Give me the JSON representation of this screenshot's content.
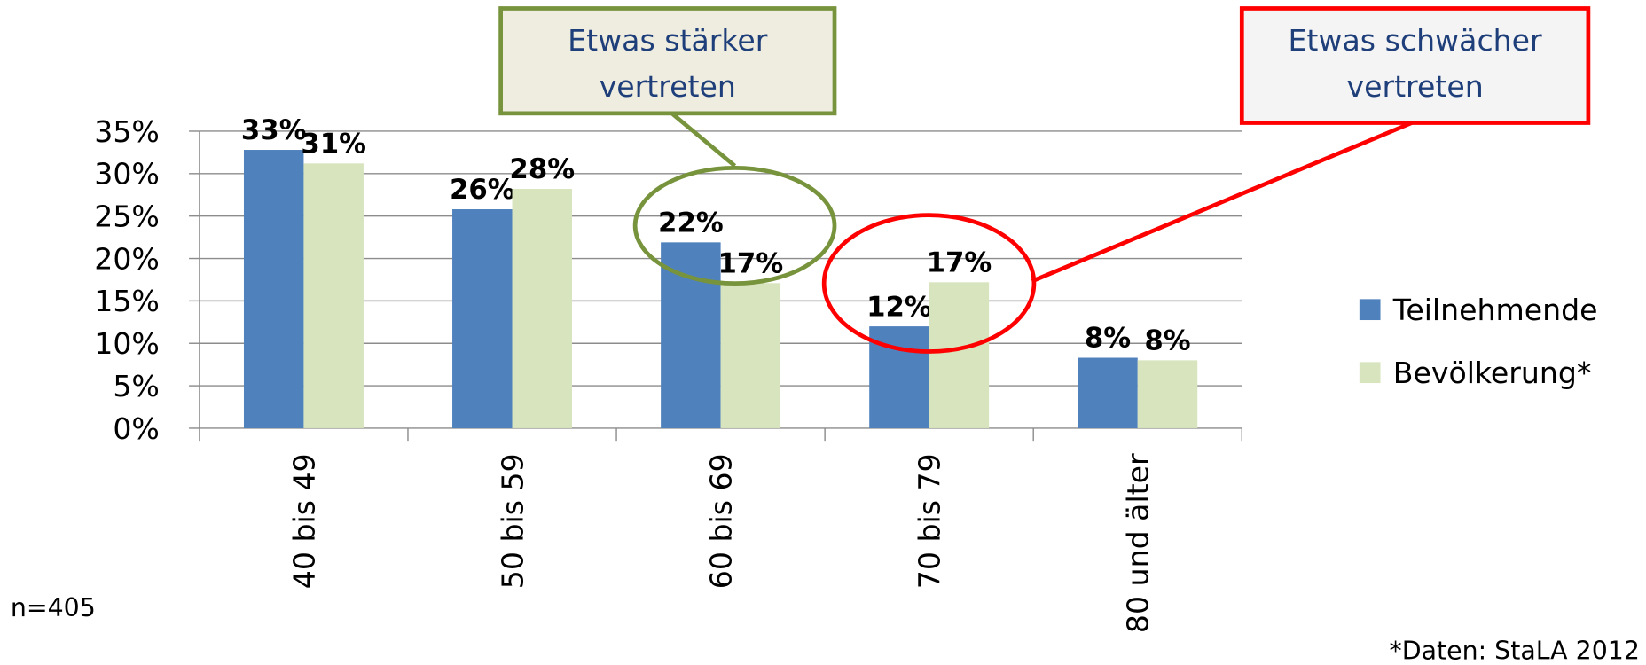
{
  "chart_data": {
    "type": "bar",
    "categories": [
      "40 bis 49",
      "50 bis 59",
      "60 bis 69",
      "70 bis 79",
      "80 und älter"
    ],
    "series": [
      {
        "name": "Teilnehmende",
        "color": "#4f81bd",
        "values": [
          32.8,
          25.8,
          21.9,
          12.0,
          8.3
        ],
        "value_labels": [
          "33%",
          "26%",
          "22%",
          "12%",
          "8%"
        ]
      },
      {
        "name": "Bevölkerung*",
        "color": "#d7e4bd",
        "values": [
          31.2,
          28.2,
          17.1,
          17.2,
          8.0
        ],
        "value_labels": [
          "31%",
          "28%",
          "17%",
          "17%",
          "8%"
        ]
      }
    ],
    "ylim": [
      0,
      35
    ],
    "yticks": [
      {
        "value": 0,
        "label": "0%"
      },
      {
        "value": 5,
        "label": "5%"
      },
      {
        "value": 10,
        "label": "10%"
      },
      {
        "value": 15,
        "label": "15%"
      },
      {
        "value": 20,
        "label": "20%"
      },
      {
        "value": 25,
        "label": "25%"
      },
      {
        "value": 30,
        "label": "30%"
      },
      {
        "value": 35,
        "label": "35%"
      }
    ],
    "grid": true,
    "legend": "right",
    "annotations": [
      {
        "lines": [
          "Etwas stärker",
          "vertreten"
        ],
        "color": "#77933c"
      },
      {
        "lines": [
          "Etwas schwächer",
          "vertreten"
        ],
        "color": "#ff0000"
      }
    ],
    "notes": [
      "n=405",
      "*Daten: StaLA 2012"
    ]
  }
}
